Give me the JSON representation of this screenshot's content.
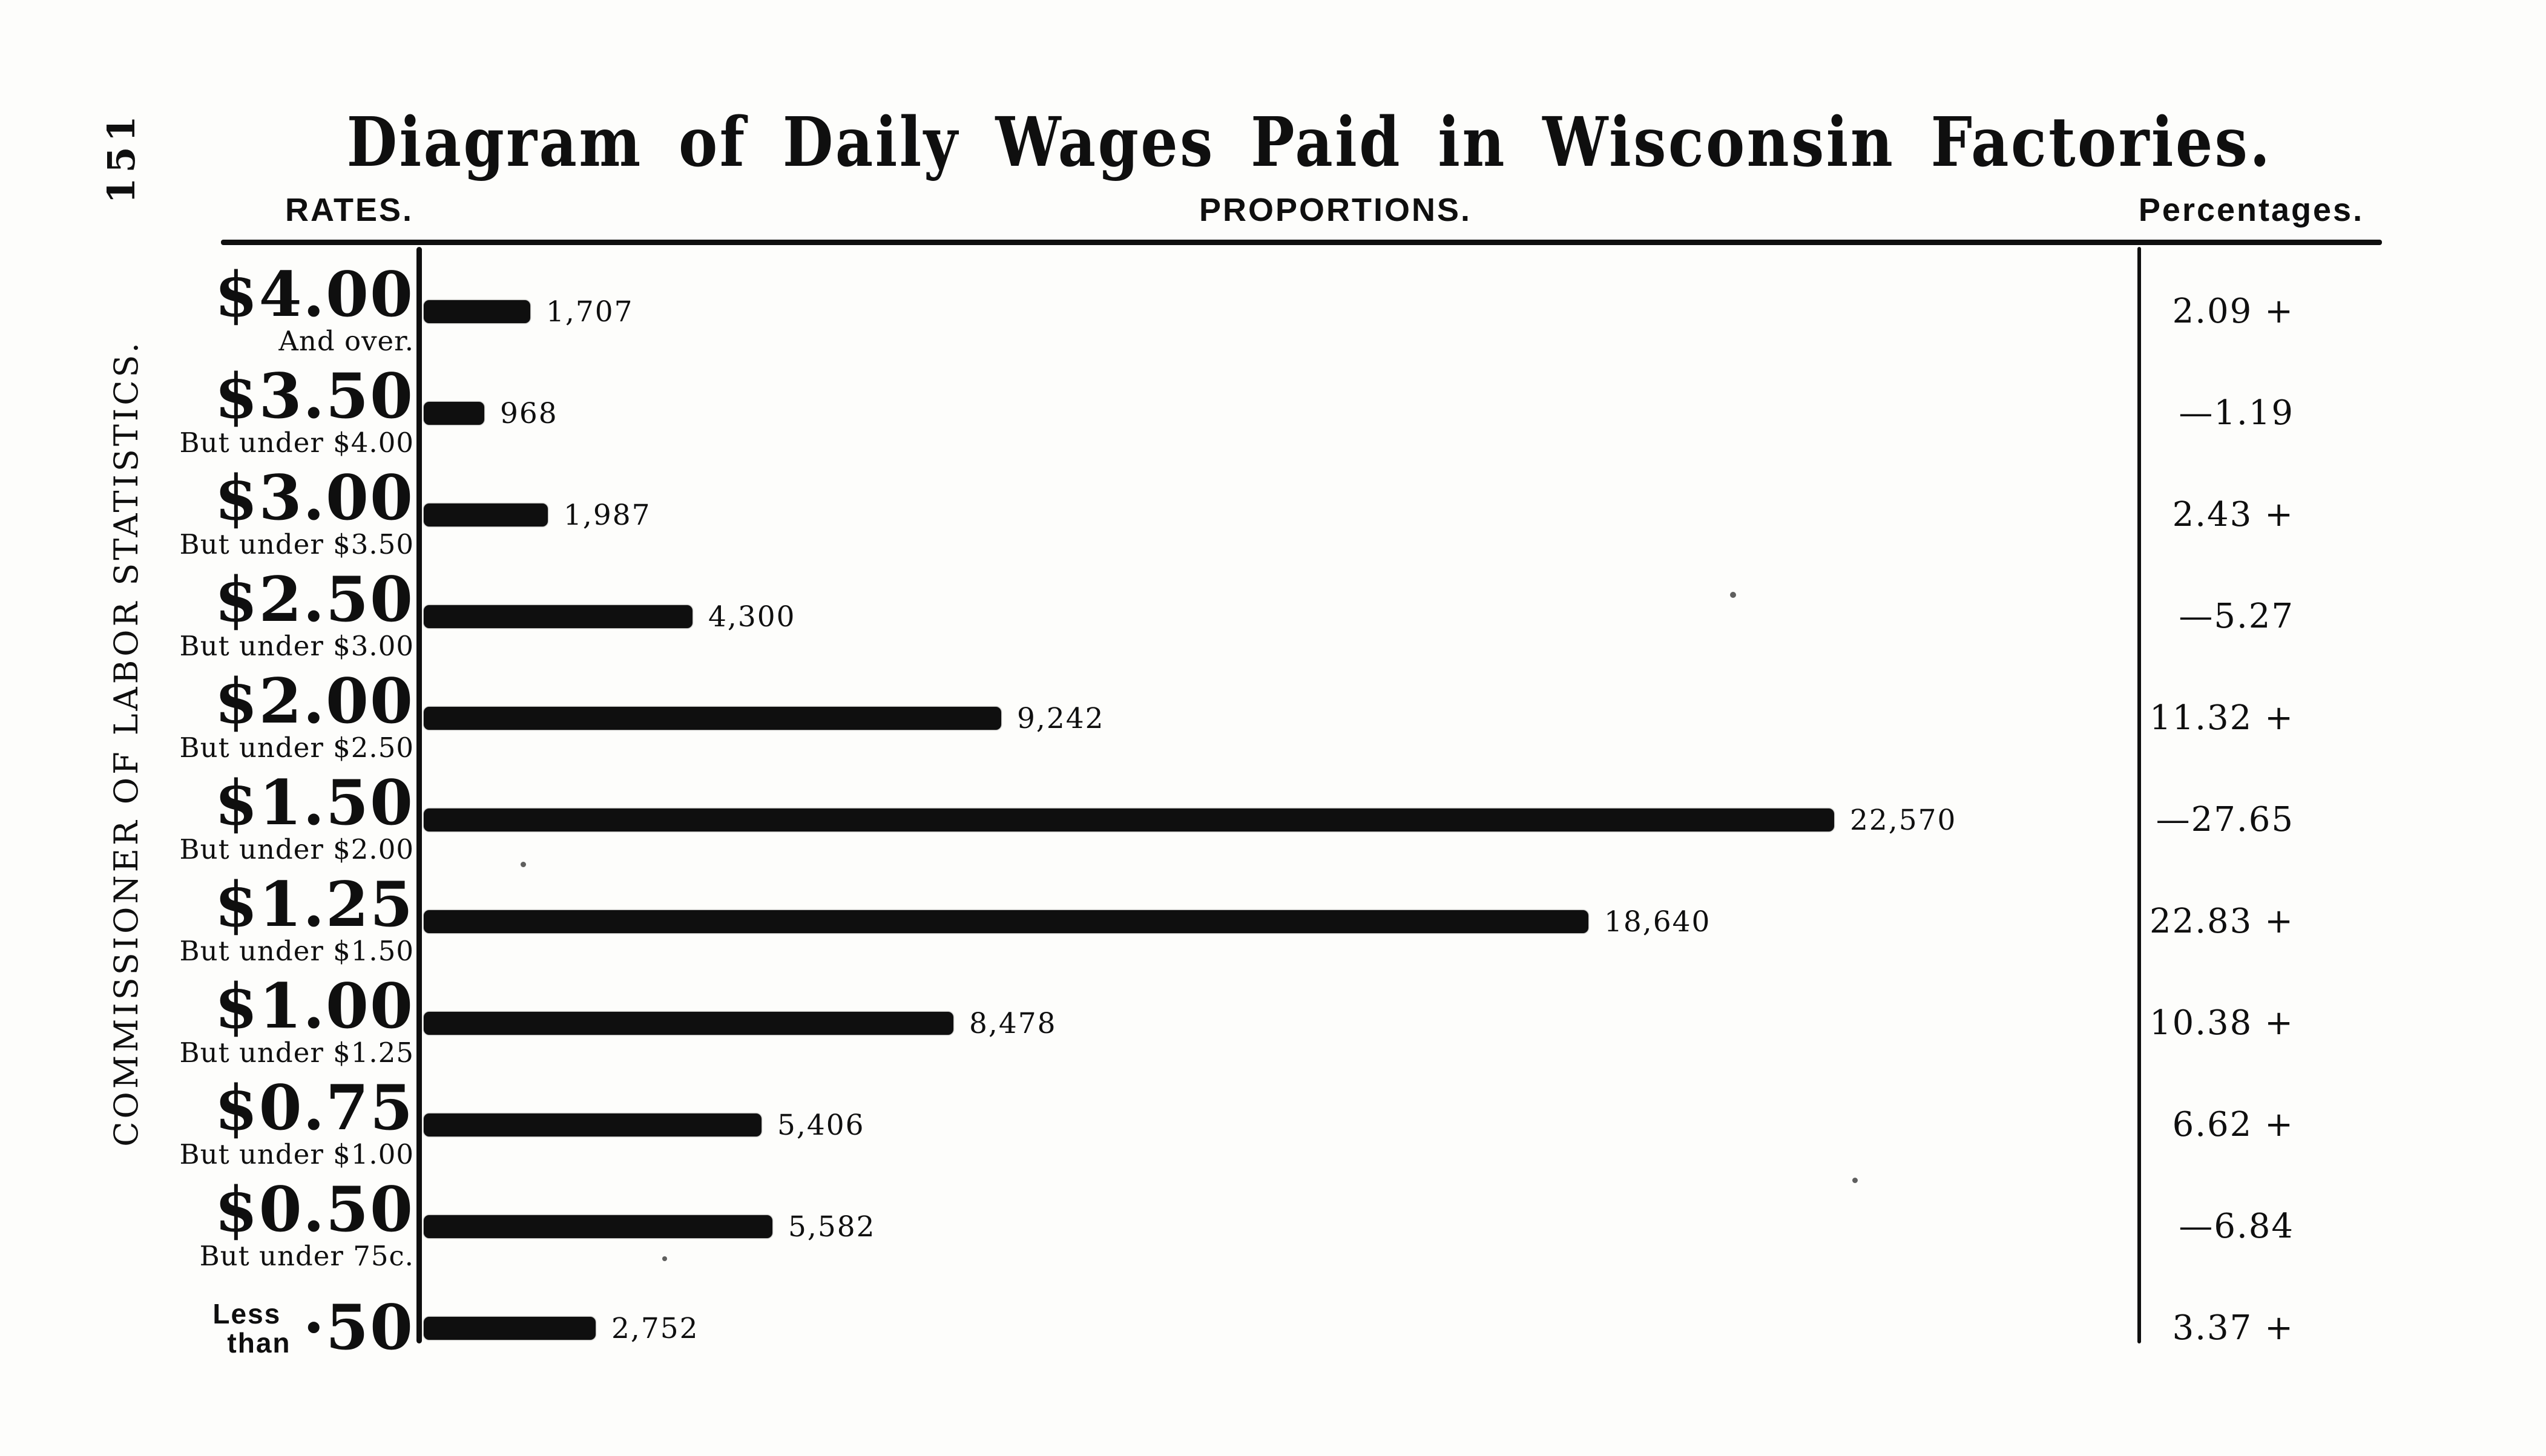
{
  "page": {
    "number": "151",
    "margin_label": "COMMISSIONER OF LABOR STATISTICS."
  },
  "title": "Diagram of Daily Wages Paid in Wisconsin Factories.",
  "columns": {
    "rates": "RATES.",
    "proportions": "PROPORTIONS.",
    "percentages": "Percentages."
  },
  "colors": {
    "ink": "#0f0f0f",
    "paper": "#fdfdfb"
  },
  "chart_data": {
    "type": "bar",
    "orientation": "horizontal",
    "title": "Diagram of Daily Wages Paid in Wisconsin Factories.",
    "max_value": 22570,
    "legend": "none",
    "rows": [
      {
        "rate": "$4.00",
        "qualifier": "And over.",
        "value": 1707,
        "value_label": "1,707",
        "percentage": "2.09 +"
      },
      {
        "rate": "$3.50",
        "qualifier": "But under $4.00",
        "value": 968,
        "value_label": "968",
        "percentage": "—1.19"
      },
      {
        "rate": "$3.00",
        "qualifier": "But under $3.50",
        "value": 1987,
        "value_label": "1,987",
        "percentage": "2.43 +"
      },
      {
        "rate": "$2.50",
        "qualifier": "But under $3.00",
        "value": 4300,
        "value_label": "4,300",
        "percentage": "—5.27"
      },
      {
        "rate": "$2.00",
        "qualifier": "But under $2.50",
        "value": 9242,
        "value_label": "9,242",
        "percentage": "11.32 +"
      },
      {
        "rate": "$1.50",
        "qualifier": "But under $2.00",
        "value": 22570,
        "value_label": "22,570",
        "percentage": "—27.65"
      },
      {
        "rate": "$1.25",
        "qualifier": "But under $1.50",
        "value": 18640,
        "value_label": "18,640",
        "percentage": "22.83 +"
      },
      {
        "rate": "$1.00",
        "qualifier": "But under $1.25",
        "value": 8478,
        "value_label": "8,478",
        "percentage": "10.38 +"
      },
      {
        "rate": "$0.75",
        "qualifier": "But under $1.00",
        "value": 5406,
        "value_label": "5,406",
        "percentage": "6.62 +"
      },
      {
        "rate": "$0.50",
        "qualifier": "But under 75c.",
        "value": 5582,
        "value_label": "5,582",
        "percentage": "—6.84"
      },
      {
        "rate": "·50",
        "rate_prefix": [
          "Less",
          "than"
        ],
        "qualifier": "",
        "value": 2752,
        "value_label": "2,752",
        "percentage": "3.37 +"
      }
    ]
  }
}
